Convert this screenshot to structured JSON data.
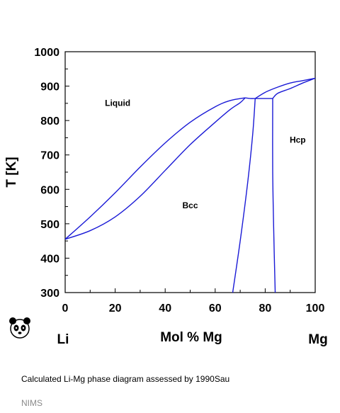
{
  "chart_data": {
    "type": "line",
    "title": "",
    "xlabel": "Mol % Mg",
    "ylabel": "T [K]",
    "xlim": [
      0,
      100
    ],
    "ylim": [
      300,
      1000
    ],
    "xticks": [
      "0",
      "20",
      "40",
      "60",
      "80",
      "100"
    ],
    "yticks": [
      "300",
      "400",
      "500",
      "600",
      "700",
      "800",
      "900",
      "1000"
    ],
    "x_end_labels": {
      "left": "Li",
      "right": "Mg"
    },
    "phase_labels": [
      {
        "text": "Liquid",
        "x": 21,
        "y": 842
      },
      {
        "text": "Bcc",
        "x": 50,
        "y": 545
      },
      {
        "text": "Hcp",
        "x": 93,
        "y": 735
      }
    ],
    "line_color": "#1a1ad6",
    "series": [
      {
        "values": [
          [
            0,
            455
          ],
          [
            10,
            520
          ],
          [
            20,
            590
          ],
          [
            30,
            665
          ],
          [
            40,
            735
          ],
          [
            50,
            795
          ],
          [
            60,
            840
          ],
          [
            66,
            858
          ],
          [
            72,
            866
          ]
        ]
      },
      {
        "values": [
          [
            0,
            455
          ],
          [
            10,
            480
          ],
          [
            20,
            520
          ],
          [
            30,
            580
          ],
          [
            40,
            655
          ],
          [
            50,
            730
          ],
          [
            60,
            795
          ],
          [
            66,
            832
          ],
          [
            70,
            852
          ],
          [
            72,
            866
          ]
        ]
      },
      {
        "values": [
          [
            72,
            866
          ],
          [
            74,
            864
          ],
          [
            76,
            864
          ]
        ]
      },
      {
        "values": [
          [
            67,
            300
          ],
          [
            70,
            450
          ],
          [
            73,
            620
          ],
          [
            75,
            760
          ],
          [
            76,
            864
          ]
        ]
      },
      {
        "values": [
          [
            76,
            864
          ],
          [
            83,
            864
          ]
        ]
      },
      {
        "values": [
          [
            84,
            300
          ],
          [
            83.5,
            450
          ],
          [
            83,
            650
          ],
          [
            83,
            864
          ]
        ]
      },
      {
        "values": [
          [
            76,
            864
          ],
          [
            80,
            882
          ],
          [
            85,
            897
          ],
          [
            90,
            909
          ],
          [
            95,
            916
          ],
          [
            100,
            923
          ]
        ]
      },
      {
        "values": [
          [
            83,
            864
          ],
          [
            85,
            879
          ],
          [
            90,
            893
          ],
          [
            95,
            909
          ],
          [
            100,
            923
          ]
        ]
      }
    ]
  },
  "caption": "Calculated Li-Mg phase diagram assessed by 1990Sau",
  "footer": "NIMS",
  "logo_icon": "panda-icon"
}
